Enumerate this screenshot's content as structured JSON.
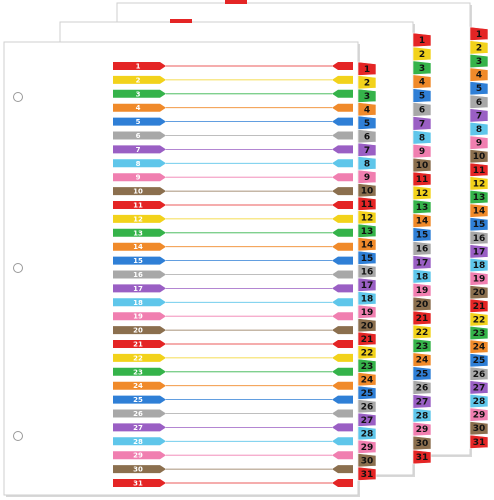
{
  "tabs": [
    "1",
    "2",
    "3",
    "4",
    "5",
    "6",
    "7",
    "8",
    "9",
    "10",
    "11",
    "12",
    "13",
    "14",
    "15",
    "16",
    "17",
    "18",
    "19",
    "20",
    "21",
    "22",
    "23",
    "24",
    "25",
    "26",
    "27",
    "28",
    "29",
    "30",
    "31"
  ],
  "colors": [
    "#e42525",
    "#f2d21b",
    "#35b34a",
    "#f08a2a",
    "#2f7fd6",
    "#a8a8a8",
    "#9a5fc4",
    "#5fc6ea",
    "#f07fb0",
    "#8b6f4e"
  ]
}
